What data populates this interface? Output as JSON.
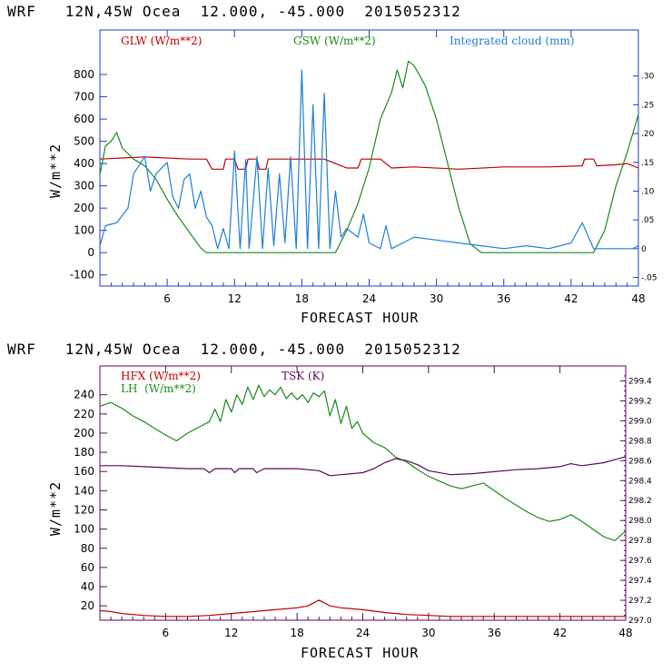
{
  "chart_data": [
    {
      "type": "line",
      "header": "WRF   12N,45W Ocea  12.000, -45.000  2015052312",
      "ylabel": "W/m**2",
      "xlabel": "FORECAST HOUR",
      "xlim": [
        0,
        48
      ],
      "ylim": [
        -150,
        1000
      ],
      "y2lim": [
        -0.065,
        0.38
      ],
      "x_ticks": [
        "6",
        "12",
        "18",
        "24",
        "30",
        "36",
        "42",
        "48"
      ],
      "y_ticks": [
        "-100",
        "0",
        "100",
        "200",
        "300",
        "400",
        "500",
        "600",
        "700",
        "800"
      ],
      "y2_ticks": [
        "-.05",
        "0",
        ".05",
        ".10",
        ".15",
        ".20",
        ".25",
        ".30"
      ],
      "legend": [
        {
          "label": "GLW (W/m**2)",
          "color": "#c00000"
        },
        {
          "label": "GSW (W/m**2)",
          "color": "#1a8a1a"
        },
        {
          "label": "Integrated cloud (mm)",
          "color": "#1f7fd6"
        }
      ],
      "series": [
        {
          "name": "GLW",
          "color": "#c00000",
          "axis": "left",
          "points": [
            [
              0,
              420
            ],
            [
              2,
              425
            ],
            [
              4,
              430
            ],
            [
              6,
              425
            ],
            [
              8,
              420
            ],
            [
              9.5,
              420
            ],
            [
              10,
              375
            ],
            [
              11,
              375
            ],
            [
              11.2,
              420
            ],
            [
              12,
              420
            ],
            [
              12.3,
              375
            ],
            [
              13,
              375
            ],
            [
              13.2,
              420
            ],
            [
              14,
              420
            ],
            [
              14.2,
              375
            ],
            [
              14.8,
              375
            ],
            [
              15,
              420
            ],
            [
              20,
              420
            ],
            [
              21,
              400
            ],
            [
              22,
              380
            ],
            [
              23,
              380
            ],
            [
              23.3,
              420
            ],
            [
              24,
              420
            ],
            [
              25,
              420
            ],
            [
              26,
              380
            ],
            [
              28,
              385
            ],
            [
              32,
              375
            ],
            [
              36,
              385
            ],
            [
              40,
              385
            ],
            [
              43,
              390
            ],
            [
              43.2,
              420
            ],
            [
              44,
              420
            ],
            [
              44.3,
              390
            ],
            [
              46,
              395
            ],
            [
              47,
              400
            ],
            [
              48,
              380
            ]
          ]
        },
        {
          "name": "GSW",
          "color": "#1a8a1a",
          "axis": "left",
          "points": [
            [
              0,
              350
            ],
            [
              0.5,
              480
            ],
            [
              1,
              500
            ],
            [
              1.5,
              540
            ],
            [
              2,
              470
            ],
            [
              3,
              420
            ],
            [
              4,
              390
            ],
            [
              5,
              330
            ],
            [
              6,
              240
            ],
            [
              7,
              160
            ],
            [
              8,
              90
            ],
            [
              9,
              20
            ],
            [
              9.5,
              0
            ],
            [
              21,
              0
            ],
            [
              22,
              100
            ],
            [
              23,
              220
            ],
            [
              24,
              380
            ],
            [
              25,
              600
            ],
            [
              26,
              720
            ],
            [
              26.5,
              820
            ],
            [
              27,
              740
            ],
            [
              27.5,
              860
            ],
            [
              28,
              840
            ],
            [
              29,
              750
            ],
            [
              30,
              600
            ],
            [
              31,
              400
            ],
            [
              32,
              200
            ],
            [
              33,
              40
            ],
            [
              34,
              0
            ],
            [
              44,
              0
            ],
            [
              45,
              100
            ],
            [
              46,
              300
            ],
            [
              47,
              450
            ],
            [
              48,
              620
            ]
          ]
        },
        {
          "name": "Integrated cloud",
          "color": "#1f7fd6",
          "axis": "right",
          "points": [
            [
              0,
              0.005
            ],
            [
              0.5,
              0.04
            ],
            [
              1.5,
              0.045
            ],
            [
              2.5,
              0.07
            ],
            [
              3,
              0.13
            ],
            [
              4,
              0.16
            ],
            [
              4.5,
              0.1
            ],
            [
              5,
              0.13
            ],
            [
              6,
              0.15
            ],
            [
              6.5,
              0.09
            ],
            [
              7,
              0.07
            ],
            [
              7.5,
              0.12
            ],
            [
              8,
              0.13
            ],
            [
              8.5,
              0.07
            ],
            [
              9,
              0.1
            ],
            [
              9.5,
              0.055
            ],
            [
              10,
              0.04
            ],
            [
              10.5,
              0.0
            ],
            [
              11,
              0.035
            ],
            [
              11.5,
              0.0
            ],
            [
              12,
              0.17
            ],
            [
              12.5,
              0.0
            ],
            [
              13,
              0.155
            ],
            [
              13.3,
              0.0
            ],
            [
              14,
              0.16
            ],
            [
              14.5,
              0.0
            ],
            [
              15,
              0.14
            ],
            [
              15.5,
              0.005
            ],
            [
              16,
              0.13
            ],
            [
              16.5,
              0.01
            ],
            [
              17,
              0.16
            ],
            [
              17.5,
              0.0
            ],
            [
              18,
              0.31
            ],
            [
              18.5,
              0.0
            ],
            [
              19,
              0.25
            ],
            [
              19.5,
              0.0
            ],
            [
              20,
              0.27
            ],
            [
              20.5,
              0.0
            ],
            [
              21,
              0.1
            ],
            [
              21.5,
              0.02
            ],
            [
              22,
              0.035
            ],
            [
              23,
              0.02
            ],
            [
              23.5,
              0.06
            ],
            [
              24,
              0.01
            ],
            [
              25,
              0.0
            ],
            [
              25.5,
              0.04
            ],
            [
              26,
              0.0
            ],
            [
              27,
              0.01
            ],
            [
              28,
              0.02
            ],
            [
              30,
              0.015
            ],
            [
              32,
              0.01
            ],
            [
              34,
              0.005
            ],
            [
              36,
              0.0
            ],
            [
              38,
              0.005
            ],
            [
              40,
              0.0
            ],
            [
              42,
              0.01
            ],
            [
              43,
              0.045
            ],
            [
              44,
              0.0
            ],
            [
              46,
              0.0
            ],
            [
              47.5,
              0.0
            ],
            [
              48,
              0.005
            ]
          ]
        }
      ]
    },
    {
      "type": "line",
      "header": "WRF   12N,45W Ocea  12.000, -45.000  2015052312",
      "ylabel": "W/m**2",
      "xlabel": "FORECAST HOUR",
      "xlim": [
        0,
        48
      ],
      "ylim": [
        5,
        270
      ],
      "y2lim": [
        297.0,
        299.55
      ],
      "x_ticks": [
        "6",
        "12",
        "18",
        "24",
        "30",
        "36",
        "42",
        "48"
      ],
      "y_ticks": [
        "20",
        "40",
        "60",
        "80",
        "100",
        "120",
        "140",
        "160",
        "180",
        "200",
        "220",
        "240"
      ],
      "y2_ticks": [
        "297.0",
        "297.2",
        "297.4",
        "297.6",
        "297.8",
        "298.0",
        "298.2",
        "298.4",
        "298.6",
        "298.8",
        "299.0",
        "299.2",
        "299.4"
      ],
      "legend": [
        {
          "label": "HFX (W/m**2)",
          "color": "#c00000"
        },
        {
          "label": "LH  (W/m**2)",
          "color": "#1a8a1a"
        },
        {
          "label": "TSK (K)",
          "color": "#5a0a5a"
        }
      ],
      "series": [
        {
          "name": "HFX",
          "color": "#c00000",
          "axis": "left",
          "points": [
            [
              0,
              15
            ],
            [
              1,
              14
            ],
            [
              2,
              12
            ],
            [
              4,
              10
            ],
            [
              6,
              9
            ],
            [
              8,
              9
            ],
            [
              10,
              10
            ],
            [
              12,
              12
            ],
            [
              14,
              14
            ],
            [
              16,
              16
            ],
            [
              18,
              18
            ],
            [
              19,
              20
            ],
            [
              20,
              26
            ],
            [
              21,
              20
            ],
            [
              22,
              18
            ],
            [
              24,
              16
            ],
            [
              26,
              13
            ],
            [
              28,
              11
            ],
            [
              30,
              10
            ],
            [
              32,
              9
            ],
            [
              36,
              9
            ],
            [
              40,
              9
            ],
            [
              44,
              9
            ],
            [
              46,
              9
            ],
            [
              48,
              9
            ]
          ]
        },
        {
          "name": "LH",
          "color": "#1a8a1a",
          "axis": "left",
          "points": [
            [
              0,
              228
            ],
            [
              1,
              232
            ],
            [
              2,
              226
            ],
            [
              3,
              218
            ],
            [
              4,
              212
            ],
            [
              5,
              205
            ],
            [
              6,
              198
            ],
            [
              7,
              192
            ],
            [
              8,
              200
            ],
            [
              9,
              206
            ],
            [
              10,
              212
            ],
            [
              10.5,
              225
            ],
            [
              11,
              212
            ],
            [
              11.5,
              235
            ],
            [
              12,
              222
            ],
            [
              12.5,
              240
            ],
            [
              13,
              230
            ],
            [
              13.5,
              248
            ],
            [
              14,
              235
            ],
            [
              14.5,
              250
            ],
            [
              15,
              238
            ],
            [
              15.5,
              245
            ],
            [
              16,
              240
            ],
            [
              16.5,
              248
            ],
            [
              17,
              236
            ],
            [
              17.5,
              242
            ],
            [
              18,
              235
            ],
            [
              18.5,
              240
            ],
            [
              19,
              232
            ],
            [
              19.5,
              242
            ],
            [
              20,
              238
            ],
            [
              20.5,
              244
            ],
            [
              21,
              218
            ],
            [
              21.5,
              235
            ],
            [
              22,
              210
            ],
            [
              22.5,
              228
            ],
            [
              23,
              205
            ],
            [
              23.5,
              212
            ],
            [
              24,
              200
            ],
            [
              25,
              190
            ],
            [
              26,
              185
            ],
            [
              27,
              175
            ],
            [
              28,
              170
            ],
            [
              29,
              162
            ],
            [
              30,
              155
            ],
            [
              31,
              150
            ],
            [
              32,
              145
            ],
            [
              33,
              142
            ],
            [
              34,
              145
            ],
            [
              35,
              148
            ],
            [
              36,
              140
            ],
            [
              37,
              132
            ],
            [
              38,
              125
            ],
            [
              39,
              118
            ],
            [
              40,
              112
            ],
            [
              41,
              108
            ],
            [
              42,
              110
            ],
            [
              43,
              115
            ],
            [
              44,
              108
            ],
            [
              45,
              100
            ],
            [
              46,
              92
            ],
            [
              47,
              88
            ],
            [
              48,
              98
            ]
          ]
        },
        {
          "name": "TSK",
          "color": "#5a0a5a",
          "axis": "right",
          "points": [
            [
              0,
              298.55
            ],
            [
              2,
              298.55
            ],
            [
              4,
              298.54
            ],
            [
              6,
              298.53
            ],
            [
              8,
              298.52
            ],
            [
              9.5,
              298.52
            ],
            [
              10,
              298.48
            ],
            [
              10.5,
              298.52
            ],
            [
              12,
              298.52
            ],
            [
              12.3,
              298.48
            ],
            [
              12.7,
              298.52
            ],
            [
              14,
              298.52
            ],
            [
              14.3,
              298.48
            ],
            [
              15,
              298.52
            ],
            [
              18,
              298.52
            ],
            [
              20,
              298.5
            ],
            [
              21,
              298.45
            ],
            [
              22,
              298.46
            ],
            [
              23,
              298.47
            ],
            [
              24,
              298.48
            ],
            [
              25,
              298.52
            ],
            [
              26,
              298.58
            ],
            [
              27,
              298.62
            ],
            [
              28,
              298.6
            ],
            [
              29,
              298.56
            ],
            [
              30,
              298.5
            ],
            [
              32,
              298.46
            ],
            [
              34,
              298.47
            ],
            [
              36,
              298.49
            ],
            [
              38,
              298.51
            ],
            [
              40,
              298.52
            ],
            [
              42,
              298.54
            ],
            [
              43,
              298.57
            ],
            [
              44,
              298.55
            ],
            [
              46,
              298.58
            ],
            [
              48,
              298.64
            ]
          ]
        }
      ]
    }
  ]
}
